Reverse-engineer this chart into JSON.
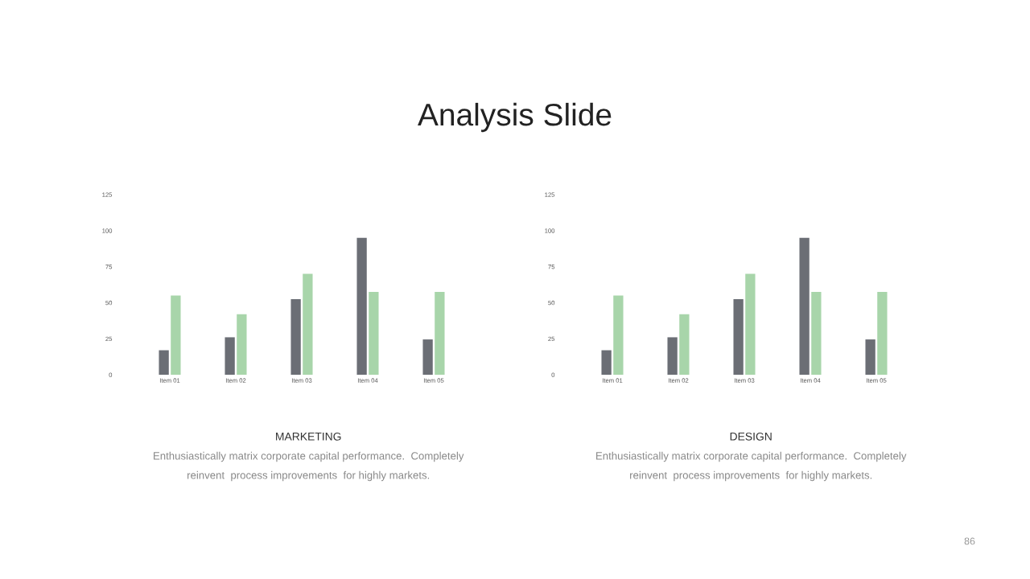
{
  "chart_data": [
    {
      "type": "other",
      "title": "Analysis Slide",
      "annotations": [
        "86"
      ]
    },
    {
      "type": "bar",
      "title": "MARKETING",
      "annotations": [
        "Enthusiastically matrix corporate capital performance.  Completely",
        "reinvent  process improvements  for highly markets."
      ],
      "categories": [
        "Item 01",
        "Item 02",
        "Item 03",
        "Item 04",
        "Item 05"
      ],
      "series": [
        {
          "color": "#6b6e75",
          "values": [
            17,
            26,
            52.5,
            95,
            24.5
          ]
        },
        {
          "color": "#a8d5aa",
          "values": [
            55,
            42,
            70,
            57.5,
            57.5
          ]
        }
      ],
      "ylim": [
        0,
        125
      ],
      "yticks": [
        0,
        25,
        50,
        75,
        100,
        125
      ],
      "grid": false,
      "legend": false
    },
    {
      "type": "bar",
      "title": "DESIGN",
      "annotations": [
        "Enthusiastically matrix corporate capital performance.  Completely",
        "reinvent  process improvements  for highly markets."
      ],
      "categories": [
        "Item 01",
        "Item 02",
        "Item 03",
        "Item 04",
        "Item 05"
      ],
      "series": [
        {
          "color": "#6b6e75",
          "values": [
            17,
            26,
            52.5,
            95,
            24.5
          ]
        },
        {
          "color": "#a8d5aa",
          "values": [
            55,
            42,
            70,
            57.5,
            57.5
          ]
        }
      ],
      "ylim": [
        0,
        125
      ],
      "yticks": [
        0,
        25,
        50,
        75,
        100,
        125
      ],
      "grid": false,
      "legend": false
    }
  ]
}
